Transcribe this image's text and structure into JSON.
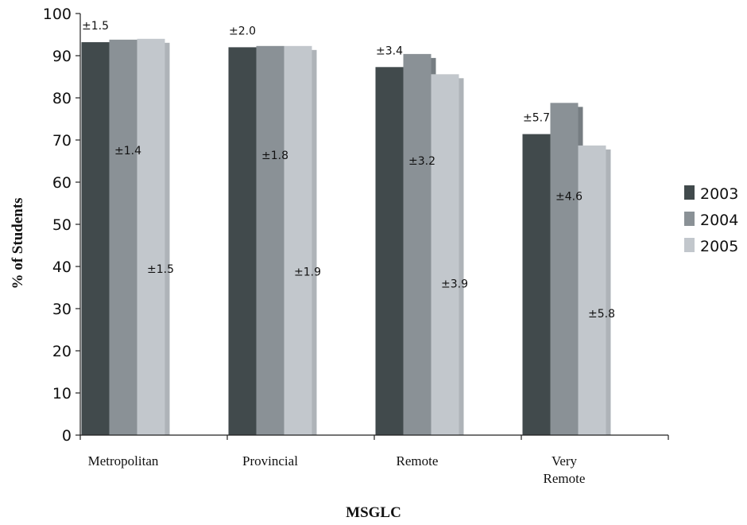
{
  "chart_data": {
    "type": "bar",
    "title": "",
    "xlabel": "MSGLC",
    "ylabel": "% of Students",
    "ylim": [
      0,
      100
    ],
    "yticks": [
      0,
      10,
      20,
      30,
      40,
      50,
      60,
      70,
      80,
      90,
      100
    ],
    "categories": [
      [
        "Metropolitan"
      ],
      [
        "Provincial"
      ],
      [
        "Remote"
      ],
      [
        "Very",
        "Remote"
      ]
    ],
    "legend_position": "right",
    "grid": false,
    "series": [
      {
        "name": "2003",
        "color": "#414a4c",
        "values": [
          93.2,
          92.0,
          87.3,
          71.4
        ],
        "errors": [
          "±1.5",
          "±2.0",
          "±3.4",
          "±5.7"
        ]
      },
      {
        "name": "2004",
        "color": "#8a9196",
        "values": [
          93.8,
          92.3,
          90.4,
          78.8
        ],
        "errors": [
          "±1.4",
          "±1.8",
          "±3.2",
          "±4.6"
        ]
      },
      {
        "name": "2005",
        "color": "#c2c7cc",
        "values": [
          94.0,
          92.3,
          85.6,
          68.7
        ],
        "errors": [
          "±1.5",
          "±1.9",
          "±3.9",
          "±5.8"
        ]
      }
    ]
  }
}
